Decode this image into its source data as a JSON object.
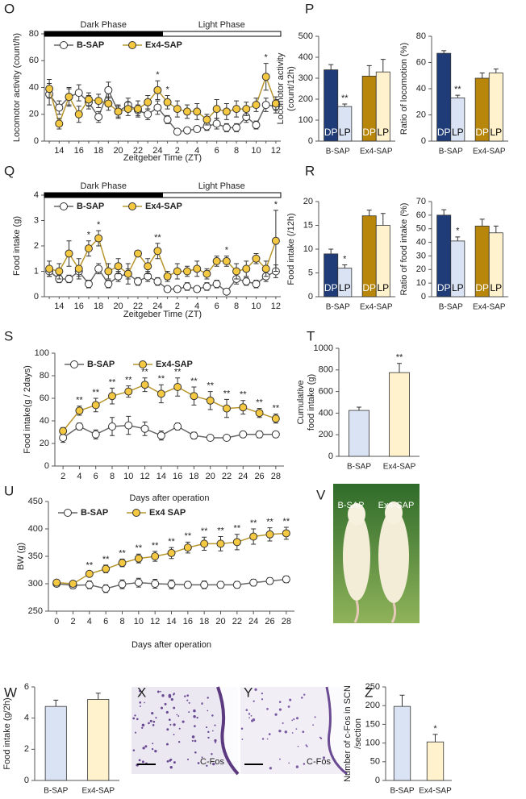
{
  "chart_data": [
    {
      "type": "line",
      "panel": "O",
      "ylabel": [
        "Locomotor activity (count/h)"
      ],
      "xlabel": "Zeitgeber Time (ZT)",
      "categories": [
        null,
        "14",
        null,
        "16",
        null,
        "18",
        null,
        "20",
        null,
        "22",
        null,
        "24",
        null,
        "2",
        null,
        "4",
        null,
        "6",
        null,
        "8",
        null,
        "10",
        null,
        "12"
      ],
      "ylim": [
        0,
        80
      ],
      "yticks": [
        0,
        20,
        40,
        60,
        80
      ],
      "legend_loc": "upper left",
      "phases": [
        {
          "label": "Dark Phase",
          "fill": "#000000"
        },
        {
          "label": "Light Phase",
          "fill": "#ffffff"
        }
      ],
      "series": [
        {
          "name": "B-SAP",
          "color": "#ffffff",
          "line_color": "#666666",
          "values": [
            35,
            25,
            33,
            36,
            29,
            18,
            38,
            22,
            27,
            23,
            20,
            25,
            16,
            7,
            8,
            9,
            11,
            13,
            10,
            10,
            18,
            12,
            27,
            26
          ],
          "errors": [
            8,
            5,
            7,
            6,
            5,
            4,
            6,
            5,
            5,
            4,
            4,
            5,
            3,
            2,
            2,
            2,
            3,
            4,
            3,
            3,
            4,
            3,
            5,
            5
          ]
        },
        {
          "name": "Ex4-SAP",
          "color": "#f5c842",
          "line_color": "#b8962e",
          "values": [
            39,
            13,
            33,
            20,
            31,
            30,
            28,
            22,
            24,
            24,
            29,
            38,
            29,
            24,
            22,
            22,
            16,
            24,
            22,
            24,
            24,
            27,
            48,
            28
          ],
          "errors": [
            7,
            4,
            6,
            6,
            5,
            5,
            5,
            4,
            5,
            6,
            5,
            7,
            5,
            6,
            5,
            6,
            4,
            7,
            6,
            6,
            5,
            5,
            10,
            5
          ],
          "sig": [
            null,
            null,
            null,
            null,
            null,
            null,
            null,
            null,
            null,
            null,
            null,
            "*",
            "*",
            null,
            null,
            null,
            null,
            null,
            null,
            null,
            null,
            null,
            "*",
            null
          ]
        }
      ]
    },
    {
      "type": "bar",
      "panel": "P",
      "ylabel": [
        "Locomotor activity",
        "(count/12h)"
      ],
      "categories": [
        "B-SAP",
        "Ex4-SAP"
      ],
      "ylim": [
        0,
        500
      ],
      "yticks": [
        0,
        100,
        200,
        300,
        400,
        500
      ],
      "series": [
        {
          "name": "DP",
          "colors": [
            "#1f3c78",
            "#b8860b"
          ],
          "values": [
            340,
            310
          ],
          "errors": [
            25,
            50
          ]
        },
        {
          "name": "LP",
          "colors": [
            "#dae3f3",
            "#fff2cc"
          ],
          "values": [
            165,
            330
          ],
          "errors": [
            12,
            60
          ],
          "sig": [
            "**",
            null
          ]
        }
      ]
    },
    {
      "type": "bar",
      "ylabel": [
        "Ratio of locomotion (%)"
      ],
      "categories": [
        "B-SAP",
        "Ex4-SAP"
      ],
      "ylim": [
        0,
        80
      ],
      "yticks": [
        0,
        20,
        40,
        60,
        80
      ],
      "series": [
        {
          "name": "DP",
          "colors": [
            "#1f3c78",
            "#b8860b"
          ],
          "values": [
            67,
            48
          ],
          "errors": [
            2,
            4
          ]
        },
        {
          "name": "LP",
          "colors": [
            "#dae3f3",
            "#fff2cc"
          ],
          "values": [
            33,
            52
          ],
          "errors": [
            2,
            3
          ],
          "sig": [
            "**",
            null
          ]
        }
      ]
    },
    {
      "type": "line",
      "panel": "Q",
      "ylabel": [
        "Food intake (g)"
      ],
      "xlabel": "Zeitgeber Time (ZT)",
      "categories": [
        null,
        "14",
        null,
        "16",
        null,
        "18",
        null,
        "20",
        null,
        "22",
        null,
        "24",
        null,
        "2",
        null,
        "4",
        null,
        "6",
        null,
        "8",
        null,
        "10",
        null,
        "12"
      ],
      "ylim": [
        0,
        4
      ],
      "yticks": [
        0,
        1,
        2,
        3,
        4
      ],
      "legend_loc": "upper left",
      "phases": [
        {
          "label": "Dark Phase",
          "fill": "#000000"
        },
        {
          "label": "Light Phase",
          "fill": "#ffffff"
        }
      ],
      "series": [
        {
          "name": "B-SAP",
          "color": "#ffffff",
          "line_color": "#666666",
          "values": [
            1.0,
            0.7,
            0.7,
            1.0,
            0.5,
            1.1,
            0.5,
            0.8,
            0.9,
            0.6,
            0.8,
            0.6,
            0.3,
            0.3,
            0.4,
            0.3,
            0.4,
            0.5,
            0.2,
            0.7,
            0.6,
            0.5,
            0.8,
            1.0
          ],
          "errors": [
            0.2,
            0.15,
            0.15,
            0.2,
            0.15,
            0.2,
            0.15,
            0.2,
            0.2,
            0.15,
            0.2,
            0.15,
            0.1,
            0.1,
            0.15,
            0.1,
            0.15,
            0.15,
            0.1,
            0.2,
            0.15,
            0.15,
            0.2,
            0.25
          ]
        },
        {
          "name": "Ex4-SAP",
          "color": "#f5c842",
          "line_color": "#b8962e",
          "values": [
            1.1,
            1.0,
            1.7,
            1.1,
            1.9,
            2.3,
            1.0,
            1.2,
            0.9,
            1.7,
            1.2,
            1.8,
            0.8,
            1.0,
            1.0,
            1.1,
            0.9,
            1.4,
            1.4,
            1.0,
            1.1,
            1.5,
            1.1,
            2.2
          ],
          "errors": [
            0.3,
            0.3,
            0.5,
            0.4,
            0.3,
            0.3,
            0.3,
            0.3,
            0.4,
            0.1,
            0.3,
            0.3,
            0.2,
            0.3,
            0.2,
            0.3,
            0.2,
            0.2,
            0.2,
            0.3,
            0.3,
            0.2,
            0.3,
            1.2
          ],
          "sig": [
            null,
            null,
            null,
            null,
            "*",
            "*",
            null,
            null,
            null,
            null,
            null,
            "**",
            null,
            null,
            null,
            null,
            null,
            null,
            "*",
            null,
            null,
            null,
            null,
            "*"
          ]
        }
      ]
    },
    {
      "type": "bar",
      "panel": "R",
      "ylabel": [
        "Food intake (/12h)"
      ],
      "categories": [
        "B-SAP",
        "Ex4-SAP"
      ],
      "ylim": [
        0,
        20
      ],
      "yticks": [
        0,
        5,
        10,
        15,
        20
      ],
      "series": [
        {
          "name": "DP",
          "colors": [
            "#1f3c78",
            "#b8860b"
          ],
          "values": [
            9,
            17
          ],
          "errors": [
            1,
            1.2
          ]
        },
        {
          "name": "LP",
          "colors": [
            "#dae3f3",
            "#fff2cc"
          ],
          "values": [
            6,
            15
          ],
          "errors": [
            0.7,
            2.5
          ],
          "sig": [
            "*",
            null
          ]
        }
      ]
    },
    {
      "type": "bar",
      "ylabel": [
        "Ratio of food intake (%)"
      ],
      "categories": [
        "B-SAP",
        "Ex4-SAP"
      ],
      "ylim": [
        0,
        70
      ],
      "yticks": [
        0,
        10,
        20,
        30,
        40,
        50,
        60,
        70
      ],
      "series": [
        {
          "name": "DP",
          "colors": [
            "#1f3c78",
            "#b8860b"
          ],
          "values": [
            60,
            52
          ],
          "errors": [
            4,
            5
          ]
        },
        {
          "name": "LP",
          "colors": [
            "#dae3f3",
            "#fff2cc"
          ],
          "values": [
            41,
            47
          ],
          "errors": [
            3,
            5
          ],
          "sig": [
            "*",
            null
          ]
        }
      ]
    },
    {
      "type": "line",
      "panel": "S",
      "ylabel": [
        "Food intake(g / 2days)"
      ],
      "xlabel": "Days after operation",
      "x": [
        2,
        4,
        6,
        8,
        10,
        12,
        14,
        16,
        18,
        20,
        22,
        24,
        26,
        28
      ],
      "xlim": [
        1,
        29
      ],
      "xticks": [
        2,
        4,
        6,
        8,
        10,
        12,
        14,
        16,
        18,
        20,
        22,
        24,
        26,
        28
      ],
      "ylim": [
        0,
        100
      ],
      "yticks": [
        0,
        20,
        40,
        60,
        80,
        100
      ],
      "legend_loc": "upper left",
      "series": [
        {
          "name": "B-SAP",
          "color": "#ffffff",
          "line_color": "#666666",
          "values": [
            25,
            35,
            28,
            35,
            36,
            33,
            27,
            35,
            27,
            25,
            25,
            28,
            28,
            28
          ],
          "errors": [
            4,
            3,
            4,
            8,
            8,
            6,
            4,
            3,
            3,
            2,
            2,
            2,
            3,
            2
          ]
        },
        {
          "name": "Ex4-SAP",
          "color": "#f5c842",
          "line_color": "#b8962e",
          "values": [
            31,
            49,
            54,
            62,
            66,
            72,
            64,
            70,
            62,
            58,
            51,
            52,
            47,
            42
          ],
          "errors": [
            3,
            4,
            6,
            7,
            5,
            6,
            8,
            8,
            8,
            8,
            8,
            6,
            4,
            4
          ],
          "sig": [
            null,
            "**",
            "**",
            "**",
            "**",
            "**",
            "**",
            "**",
            "**",
            "**",
            "**",
            "**",
            "**",
            "**"
          ]
        }
      ]
    },
    {
      "type": "bar",
      "panel": "T",
      "ylabel": [
        "Cumulative",
        "food intake (g)"
      ],
      "categories": [
        "B-SAP",
        "Ex4-SAP"
      ],
      "ylim": [
        0,
        1000
      ],
      "yticks": [
        0,
        200,
        400,
        600,
        800,
        1000
      ],
      "values": [
        425,
        775
      ],
      "errors": [
        30,
        85
      ],
      "colors": [
        "#dae3f3",
        "#fff2cc"
      ],
      "sig": [
        null,
        "**"
      ]
    },
    {
      "type": "line",
      "panel": "U",
      "ylabel": [
        "BW (g)"
      ],
      "xlabel": "Days after operation",
      "x": [
        0,
        2,
        4,
        6,
        8,
        10,
        12,
        14,
        16,
        18,
        20,
        22,
        24,
        26,
        28
      ],
      "xlim": [
        -1,
        29
      ],
      "xticks": [
        0,
        2,
        4,
        6,
        8,
        10,
        12,
        14,
        16,
        18,
        20,
        22,
        24,
        26,
        28
      ],
      "ylim": [
        250,
        450
      ],
      "yticks": [
        250,
        300,
        350,
        400,
        450
      ],
      "legend_loc": "upper left",
      "series": [
        {
          "name": "B-SAP",
          "color": "#ffffff",
          "line_color": "#666666",
          "values": [
            300,
            297,
            298,
            291,
            299,
            302,
            300,
            299,
            298,
            298,
            298,
            298,
            302,
            305,
            308
          ],
          "errors": [
            5,
            6,
            7,
            7,
            8,
            8,
            8,
            8,
            6,
            7,
            6,
            6,
            6,
            6,
            6
          ]
        },
        {
          "name": "Ex4 SAP",
          "color": "#f5c842",
          "line_color": "#b8962e",
          "values": [
            302,
            300,
            318,
            327,
            338,
            346,
            350,
            356,
            366,
            373,
            373,
            376,
            386,
            390,
            392
          ],
          "errors": [
            4,
            4,
            5,
            7,
            7,
            8,
            9,
            10,
            10,
            12,
            13,
            14,
            14,
            12,
            11
          ],
          "sig": [
            null,
            null,
            "**",
            "**",
            "**",
            "**",
            "**",
            "**",
            "**",
            "**",
            "**",
            "**",
            "**",
            "**",
            "**"
          ]
        }
      ]
    },
    {
      "type": "bar",
      "panel": "W",
      "ylabel": [
        "Food intake (g/2h)"
      ],
      "categories": [
        "B-SAP",
        "Ex4-SAP"
      ],
      "ylim": [
        0,
        6
      ],
      "yticks": [
        0,
        2,
        4,
        6
      ],
      "values": [
        4.75,
        5.2
      ],
      "errors": [
        0.4,
        0.4
      ],
      "colors": [
        "#dae3f3",
        "#fff2cc"
      ]
    },
    {
      "type": "bar",
      "panel": "Z",
      "ylabel": [
        "Number of c-Fos in SCN",
        "/section"
      ],
      "categories": [
        "B-SAP",
        "Ex4-SAP"
      ],
      "ylim": [
        0,
        250
      ],
      "yticks": [
        0,
        50,
        100,
        150,
        200,
        250
      ],
      "values": [
        198,
        103
      ],
      "errors": [
        30,
        20
      ],
      "colors": [
        "#dae3f3",
        "#fff2cc"
      ],
      "sig": [
        null,
        "*"
      ]
    }
  ],
  "images": [
    {
      "panel": "V",
      "labels": [
        "B-SAP",
        "Ex4-SAP"
      ]
    },
    {
      "panel": "X",
      "labels": [
        "C-Fos"
      ]
    },
    {
      "panel": "Y",
      "labels": [
        "C-Fos"
      ]
    }
  ]
}
